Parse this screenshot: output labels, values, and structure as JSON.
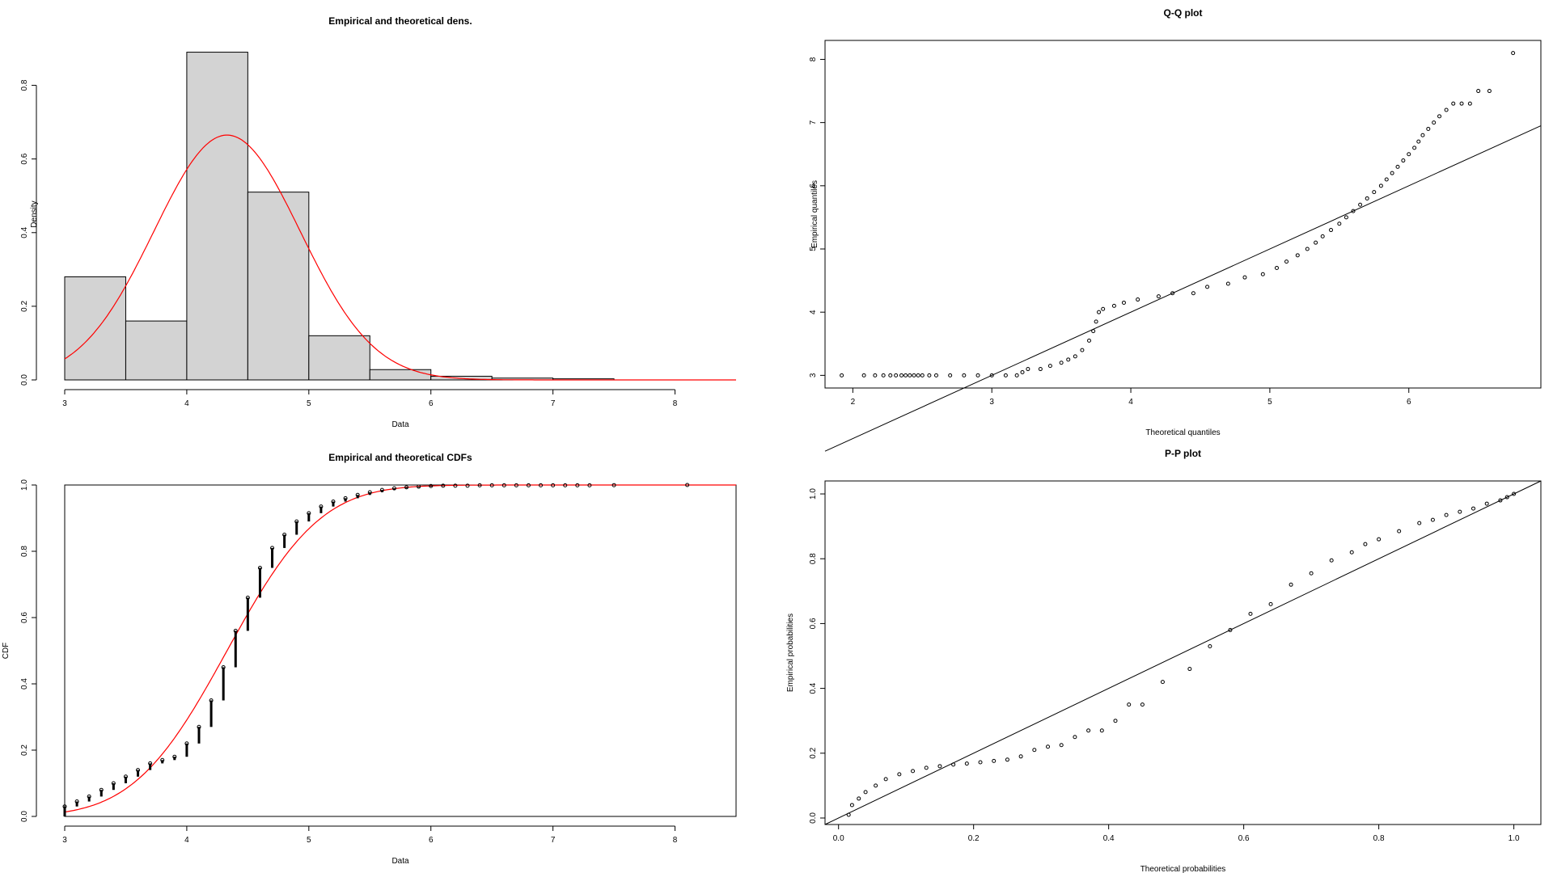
{
  "colors": {
    "theoretical": "#ff0000",
    "hist_fill": "#d3d3d3",
    "points": "#000000"
  },
  "charts": [
    {
      "id": "density",
      "type": "bar",
      "title": "Empirical and theoretical dens.",
      "xlabel": "Data",
      "ylabel": "Density",
      "xlim": [
        3,
        8.5
      ],
      "ylim": [
        0,
        0.9
      ],
      "xticks": [
        "3",
        "4",
        "5",
        "6",
        "7",
        "8"
      ],
      "yticks": [
        "0.0",
        "0.2",
        "0.4",
        "0.6",
        "0.8"
      ],
      "chart_data": {
        "type": "bar",
        "bins": [
          {
            "from": 3.0,
            "to": 3.5,
            "density": 0.28
          },
          {
            "from": 3.5,
            "to": 4.0,
            "density": 0.16
          },
          {
            "from": 4.0,
            "to": 4.5,
            "density": 0.89
          },
          {
            "from": 4.5,
            "to": 5.0,
            "density": 0.51
          },
          {
            "from": 5.0,
            "to": 5.5,
            "density": 0.12
          },
          {
            "from": 5.5,
            "to": 6.0,
            "density": 0.028
          },
          {
            "from": 6.0,
            "to": 6.5,
            "density": 0.01
          },
          {
            "from": 6.5,
            "to": 7.0,
            "density": 0.005
          },
          {
            "from": 7.0,
            "to": 7.5,
            "density": 0.003
          }
        ],
        "curve": {
          "type": "normal",
          "mean": 4.33,
          "sd": 0.6,
          "x_range": [
            3,
            8.5
          ]
        }
      }
    },
    {
      "id": "qq",
      "type": "scatter",
      "title": "Q-Q plot",
      "xlabel": "Theoretical quantiles",
      "ylabel": "Empirical quantiles",
      "xlim": [
        1.8,
        6.95
      ],
      "ylim": [
        2.8,
        8.3
      ],
      "xticks": [
        "2",
        "3",
        "4",
        "5",
        "6"
      ],
      "yticks": [
        "3",
        "4",
        "5",
        "6",
        "7",
        "8"
      ],
      "chart_data": {
        "type": "scatter",
        "reference_line": {
          "slope": 1,
          "intercept": 0
        },
        "points": [
          [
            1.92,
            3.0
          ],
          [
            2.08,
            3.0
          ],
          [
            2.16,
            3.0
          ],
          [
            2.22,
            3.0
          ],
          [
            2.27,
            3.0
          ],
          [
            2.31,
            3.0
          ],
          [
            2.35,
            3.0
          ],
          [
            2.38,
            3.0
          ],
          [
            2.41,
            3.0
          ],
          [
            2.44,
            3.0
          ],
          [
            2.47,
            3.0
          ],
          [
            2.5,
            3.0
          ],
          [
            2.55,
            3.0
          ],
          [
            2.6,
            3.0
          ],
          [
            2.7,
            3.0
          ],
          [
            2.8,
            3.0
          ],
          [
            2.9,
            3.0
          ],
          [
            3.0,
            3.0
          ],
          [
            3.1,
            3.0
          ],
          [
            3.18,
            3.0
          ],
          [
            3.22,
            3.05
          ],
          [
            3.26,
            3.1
          ],
          [
            3.35,
            3.1
          ],
          [
            3.42,
            3.15
          ],
          [
            3.5,
            3.2
          ],
          [
            3.55,
            3.25
          ],
          [
            3.6,
            3.3
          ],
          [
            3.65,
            3.4
          ],
          [
            3.7,
            3.55
          ],
          [
            3.73,
            3.7
          ],
          [
            3.75,
            3.85
          ],
          [
            3.77,
            4.0
          ],
          [
            3.8,
            4.05
          ],
          [
            3.88,
            4.1
          ],
          [
            3.95,
            4.15
          ],
          [
            4.05,
            4.2
          ],
          [
            4.2,
            4.25
          ],
          [
            4.3,
            4.3
          ],
          [
            4.45,
            4.3
          ],
          [
            4.55,
            4.4
          ],
          [
            4.7,
            4.45
          ],
          [
            4.82,
            4.55
          ],
          [
            4.95,
            4.6
          ],
          [
            5.05,
            4.7
          ],
          [
            5.12,
            4.8
          ],
          [
            5.2,
            4.9
          ],
          [
            5.27,
            5.0
          ],
          [
            5.33,
            5.1
          ],
          [
            5.38,
            5.2
          ],
          [
            5.44,
            5.3
          ],
          [
            5.5,
            5.4
          ],
          [
            5.55,
            5.5
          ],
          [
            5.6,
            5.6
          ],
          [
            5.65,
            5.7
          ],
          [
            5.7,
            5.8
          ],
          [
            5.75,
            5.9
          ],
          [
            5.8,
            6.0
          ],
          [
            5.84,
            6.1
          ],
          [
            5.88,
            6.2
          ],
          [
            5.92,
            6.3
          ],
          [
            5.96,
            6.4
          ],
          [
            6.0,
            6.5
          ],
          [
            6.04,
            6.6
          ],
          [
            6.07,
            6.7
          ],
          [
            6.1,
            6.8
          ],
          [
            6.14,
            6.9
          ],
          [
            6.18,
            7.0
          ],
          [
            6.22,
            7.1
          ],
          [
            6.27,
            7.2
          ],
          [
            6.32,
            7.3
          ],
          [
            6.38,
            7.3
          ],
          [
            6.44,
            7.3
          ],
          [
            6.5,
            7.5
          ],
          [
            6.58,
            7.5
          ],
          [
            6.75,
            8.1
          ]
        ]
      }
    },
    {
      "id": "cdf",
      "type": "line",
      "title": "Empirical and theoretical CDFs",
      "xlabel": "Data",
      "ylabel": "CDF",
      "xlim": [
        3,
        8.5
      ],
      "ylim": [
        0,
        1.0
      ],
      "xticks": [
        "3",
        "4",
        "5",
        "6",
        "7",
        "8"
      ],
      "yticks": [
        "0.0",
        "0.2",
        "0.4",
        "0.6",
        "0.8",
        "1.0"
      ],
      "chart_data": {
        "type": "line",
        "empirical": [
          [
            3.0,
            0.03
          ],
          [
            3.1,
            0.045
          ],
          [
            3.2,
            0.06
          ],
          [
            3.3,
            0.08
          ],
          [
            3.4,
            0.1
          ],
          [
            3.5,
            0.12
          ],
          [
            3.6,
            0.14
          ],
          [
            3.7,
            0.16
          ],
          [
            3.8,
            0.17
          ],
          [
            3.9,
            0.18
          ],
          [
            4.0,
            0.22
          ],
          [
            4.1,
            0.27
          ],
          [
            4.2,
            0.35
          ],
          [
            4.3,
            0.45
          ],
          [
            4.4,
            0.56
          ],
          [
            4.5,
            0.66
          ],
          [
            4.6,
            0.75
          ],
          [
            4.7,
            0.81
          ],
          [
            4.8,
            0.85
          ],
          [
            4.9,
            0.89
          ],
          [
            5.0,
            0.915
          ],
          [
            5.1,
            0.935
          ],
          [
            5.2,
            0.95
          ],
          [
            5.3,
            0.96
          ],
          [
            5.4,
            0.97
          ],
          [
            5.5,
            0.978
          ],
          [
            5.6,
            0.985
          ],
          [
            5.7,
            0.99
          ],
          [
            5.8,
            0.993
          ],
          [
            5.9,
            0.995
          ],
          [
            6.0,
            0.997
          ],
          [
            6.1,
            0.998
          ],
          [
            6.2,
            0.998
          ],
          [
            6.3,
            0.998
          ],
          [
            6.4,
            0.999
          ],
          [
            6.5,
            0.999
          ],
          [
            6.6,
            0.999
          ],
          [
            6.7,
            0.999
          ],
          [
            6.8,
            0.999
          ],
          [
            6.9,
            0.999
          ],
          [
            7.0,
            0.999
          ],
          [
            7.1,
            0.999
          ],
          [
            7.2,
            0.999
          ],
          [
            7.3,
            0.999
          ],
          [
            7.5,
            0.9995
          ],
          [
            8.1,
            1.0
          ]
        ],
        "curve": {
          "type": "normal-cdf",
          "mean": 4.33,
          "sd": 0.6,
          "x_range": [
            3,
            8.5
          ]
        }
      }
    },
    {
      "id": "pp",
      "type": "scatter",
      "title": "P-P plot",
      "xlabel": "Theoretical probabilities",
      "ylabel": "Empirical probabilities",
      "xlim": [
        -0.02,
        1.04
      ],
      "ylim": [
        -0.02,
        1.04
      ],
      "xticks": [
        "0.0",
        "0.2",
        "0.4",
        "0.6",
        "0.8",
        "1.0"
      ],
      "yticks": [
        "0.0",
        "0.2",
        "0.4",
        "0.6",
        "0.8",
        "1.0"
      ],
      "chart_data": {
        "type": "scatter",
        "reference_line": {
          "slope": 1,
          "intercept": 0
        },
        "points": [
          [
            0.015,
            0.01
          ],
          [
            0.02,
            0.04
          ],
          [
            0.03,
            0.06
          ],
          [
            0.04,
            0.08
          ],
          [
            0.055,
            0.1
          ],
          [
            0.07,
            0.12
          ],
          [
            0.09,
            0.135
          ],
          [
            0.11,
            0.145
          ],
          [
            0.13,
            0.155
          ],
          [
            0.15,
            0.16
          ],
          [
            0.17,
            0.165
          ],
          [
            0.19,
            0.168
          ],
          [
            0.21,
            0.172
          ],
          [
            0.23,
            0.176
          ],
          [
            0.25,
            0.18
          ],
          [
            0.27,
            0.19
          ],
          [
            0.29,
            0.21
          ],
          [
            0.31,
            0.22
          ],
          [
            0.33,
            0.225
          ],
          [
            0.35,
            0.25
          ],
          [
            0.37,
            0.27
          ],
          [
            0.39,
            0.27
          ],
          [
            0.41,
            0.3
          ],
          [
            0.43,
            0.35
          ],
          [
            0.45,
            0.35
          ],
          [
            0.48,
            0.42
          ],
          [
            0.52,
            0.46
          ],
          [
            0.55,
            0.53
          ],
          [
            0.58,
            0.58
          ],
          [
            0.61,
            0.63
          ],
          [
            0.64,
            0.66
          ],
          [
            0.67,
            0.72
          ],
          [
            0.7,
            0.755
          ],
          [
            0.73,
            0.795
          ],
          [
            0.76,
            0.82
          ],
          [
            0.78,
            0.845
          ],
          [
            0.8,
            0.86
          ],
          [
            0.83,
            0.885
          ],
          [
            0.86,
            0.91
          ],
          [
            0.88,
            0.92
          ],
          [
            0.9,
            0.935
          ],
          [
            0.92,
            0.945
          ],
          [
            0.94,
            0.955
          ],
          [
            0.96,
            0.97
          ],
          [
            0.98,
            0.98
          ],
          [
            0.99,
            0.99
          ],
          [
            1.0,
            1.0
          ]
        ]
      }
    }
  ]
}
